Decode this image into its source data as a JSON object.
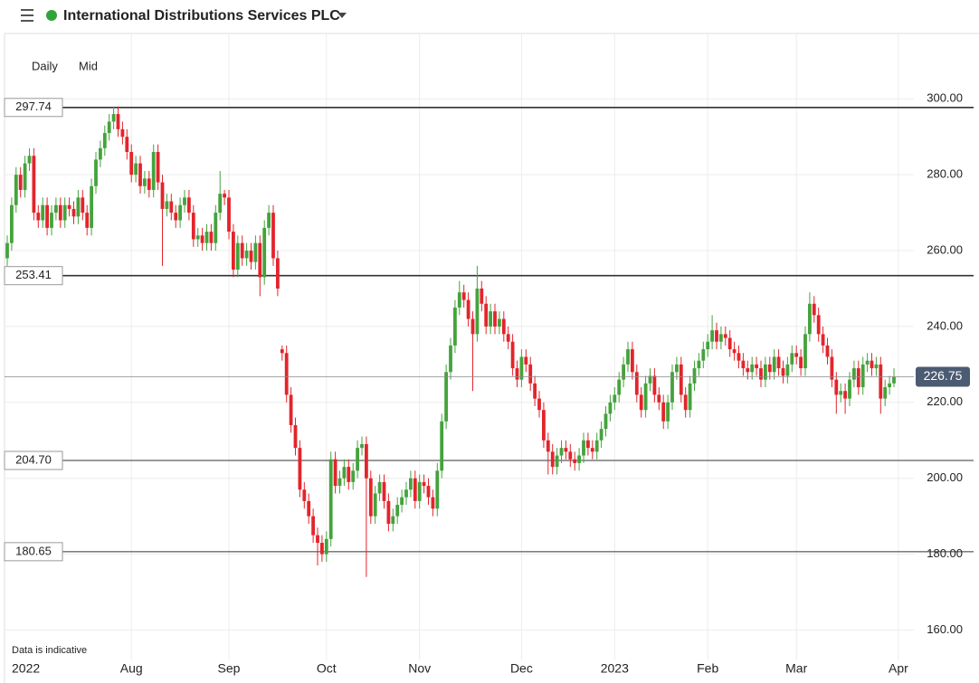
{
  "title": "International Distributions Services PLC",
  "interval": "Daily",
  "price_type": "Mid",
  "note": "Data is indicative",
  "chart_data": {
    "type": "candlestick",
    "up_color": "#44a33c",
    "down_color": "#e3242b",
    "open": [
      258,
      262,
      272,
      280,
      276,
      283,
      285,
      270,
      268,
      272,
      266,
      270,
      272,
      268,
      272,
      271,
      269,
      274,
      270,
      266,
      277,
      284,
      287,
      291,
      294,
      296,
      292,
      290,
      286,
      280,
      283,
      277,
      279,
      276,
      286,
      278,
      271,
      273,
      270,
      268,
      272,
      274,
      270,
      263,
      264,
      262,
      265,
      262,
      270,
      275,
      274,
      265,
      255,
      262,
      258,
      260,
      257,
      262,
      253,
      266,
      270,
      258,
      234,
      233,
      222,
      214,
      208,
      197,
      194,
      190,
      185,
      183,
      180,
      184,
      205,
      198,
      200,
      203,
      199,
      202,
      208,
      209,
      200,
      190,
      196,
      199,
      194,
      188,
      190,
      193,
      195,
      197,
      200,
      194,
      199,
      198,
      195,
      192,
      202,
      215,
      228,
      235,
      245,
      249,
      247,
      242,
      238,
      250,
      246,
      240,
      244,
      240,
      242,
      238,
      236,
      229,
      226,
      232,
      230,
      225,
      221,
      218,
      210,
      207,
      203,
      206,
      208,
      207,
      205,
      204,
      206,
      210,
      208,
      207,
      210,
      213,
      217,
      220,
      222,
      226,
      230,
      234,
      228,
      222,
      218,
      225,
      227,
      222,
      220,
      215,
      220,
      228,
      230,
      222,
      218,
      225,
      229,
      231,
      234,
      236,
      239,
      236,
      238,
      237,
      234,
      233,
      231,
      229,
      228,
      230,
      229,
      226,
      230,
      228,
      232,
      229,
      227,
      230,
      233,
      232,
      229,
      238,
      246,
      243,
      238,
      235,
      232,
      226,
      222,
      223,
      221,
      226,
      229,
      224,
      230,
      231,
      229,
      230,
      221,
      224,
      225
    ],
    "high": [
      264,
      274,
      282,
      282,
      285,
      287,
      287,
      272,
      274,
      274,
      272,
      274,
      274,
      274,
      274,
      273,
      276,
      276,
      272,
      279,
      286,
      289,
      293,
      296,
      298,
      298,
      294,
      292,
      288,
      285,
      285,
      281,
      281,
      288,
      288,
      280,
      275,
      275,
      272,
      274,
      276,
      276,
      272,
      266,
      266,
      267,
      267,
      272,
      281,
      276,
      276,
      267,
      264,
      264,
      262,
      262,
      264,
      264,
      268,
      272,
      272,
      260,
      235,
      235,
      224,
      216,
      210,
      199,
      196,
      192,
      187,
      185,
      186,
      207,
      207,
      202,
      205,
      205,
      204,
      210,
      211,
      211,
      202,
      198,
      201,
      201,
      196,
      192,
      195,
      197,
      199,
      202,
      202,
      201,
      201,
      200,
      197,
      204,
      217,
      230,
      237,
      247,
      252,
      251,
      249,
      244,
      256,
      252,
      248,
      246,
      246,
      244,
      244,
      240,
      238,
      231,
      234,
      234,
      232,
      227,
      223,
      220,
      212,
      209,
      208,
      210,
      210,
      209,
      207,
      208,
      212,
      212,
      210,
      212,
      215,
      219,
      222,
      224,
      228,
      232,
      236,
      236,
      230,
      224,
      227,
      229,
      229,
      224,
      222,
      222,
      230,
      232,
      232,
      224,
      227,
      231,
      233,
      236,
      238,
      243,
      241,
      240,
      240,
      239,
      236,
      235,
      233,
      231,
      232,
      232,
      231,
      232,
      232,
      234,
      234,
      231,
      232,
      235,
      235,
      234,
      240,
      249,
      248,
      245,
      240,
      237,
      234,
      228,
      225,
      225,
      228,
      231,
      231,
      232,
      233,
      233,
      232,
      232,
      226,
      227,
      229
    ],
    "low": [
      256,
      260,
      270,
      274,
      274,
      281,
      268,
      266,
      266,
      264,
      264,
      268,
      266,
      266,
      269,
      267,
      267,
      268,
      264,
      264,
      275,
      282,
      285,
      289,
      292,
      290,
      288,
      284,
      278,
      278,
      275,
      275,
      274,
      274,
      276,
      256,
      269,
      268,
      266,
      266,
      270,
      268,
      261,
      261,
      260,
      260,
      260,
      260,
      268,
      272,
      263,
      253,
      253,
      256,
      256,
      255,
      255,
      248,
      251,
      264,
      256,
      248,
      231,
      220,
      212,
      206,
      195,
      192,
      188,
      183,
      177,
      178,
      178,
      182,
      196,
      196,
      198,
      197,
      197,
      200,
      206,
      174,
      188,
      188,
      194,
      192,
      186,
      186,
      188,
      191,
      193,
      195,
      192,
      192,
      196,
      193,
      190,
      190,
      200,
      213,
      226,
      233,
      243,
      245,
      240,
      223,
      236,
      244,
      238,
      238,
      238,
      238,
      236,
      234,
      227,
      224,
      224,
      228,
      223,
      219,
      216,
      208,
      201,
      201,
      201,
      204,
      205,
      203,
      202,
      202,
      204,
      206,
      205,
      205,
      208,
      211,
      215,
      218,
      220,
      224,
      228,
      226,
      220,
      216,
      216,
      223,
      220,
      218,
      213,
      213,
      218,
      226,
      220,
      216,
      216,
      223,
      227,
      229,
      232,
      234,
      234,
      234,
      235,
      232,
      231,
      229,
      227,
      226,
      226,
      227,
      224,
      224,
      226,
      226,
      227,
      225,
      225,
      228,
      230,
      227,
      227,
      236,
      241,
      236,
      233,
      230,
      224,
      217,
      220,
      217,
      219,
      224,
      222,
      222,
      228,
      227,
      227,
      217,
      219,
      222,
      224
    ],
    "close": [
      262,
      272,
      280,
      276,
      283,
      285,
      270,
      268,
      272,
      266,
      270,
      272,
      268,
      272,
      271,
      269,
      274,
      270,
      266,
      277,
      284,
      287,
      291,
      294,
      296,
      292,
      290,
      286,
      280,
      283,
      277,
      279,
      276,
      286,
      278,
      271,
      273,
      270,
      268,
      272,
      274,
      270,
      263,
      264,
      262,
      265,
      262,
      270,
      275,
      274,
      265,
      255,
      262,
      258,
      260,
      257,
      262,
      253,
      266,
      270,
      258,
      250,
      233,
      222,
      214,
      208,
      197,
      194,
      190,
      185,
      183,
      180,
      184,
      205,
      198,
      200,
      203,
      199,
      202,
      208,
      209,
      200,
      190,
      196,
      199,
      194,
      188,
      190,
      193,
      195,
      197,
      200,
      194,
      199,
      198,
      195,
      192,
      202,
      215,
      228,
      235,
      245,
      249,
      247,
      242,
      238,
      250,
      246,
      240,
      244,
      240,
      242,
      238,
      236,
      229,
      226,
      232,
      230,
      225,
      221,
      218,
      210,
      207,
      203,
      206,
      208,
      207,
      205,
      204,
      206,
      210,
      208,
      207,
      210,
      213,
      217,
      220,
      222,
      226,
      230,
      234,
      228,
      222,
      218,
      225,
      227,
      222,
      220,
      215,
      220,
      228,
      230,
      222,
      218,
      225,
      229,
      231,
      234,
      236,
      239,
      236,
      238,
      237,
      234,
      233,
      231,
      229,
      228,
      230,
      229,
      226,
      230,
      228,
      232,
      229,
      227,
      230,
      233,
      232,
      229,
      238,
      246,
      243,
      238,
      235,
      232,
      226,
      222,
      223,
      221,
      226,
      229,
      224,
      230,
      231,
      229,
      230,
      221,
      224,
      225,
      226.75
    ],
    "ylim": [
      152,
      317
    ],
    "yticks": [
      {
        "value": 160,
        "label": "160.00"
      },
      {
        "value": 180,
        "label": "180.00"
      },
      {
        "value": 200,
        "label": "200.00"
      },
      {
        "value": 220,
        "label": "220.00"
      },
      {
        "value": 240,
        "label": "240.00"
      },
      {
        "value": 260,
        "label": "260.00"
      },
      {
        "value": 280,
        "label": "280.00"
      },
      {
        "value": 300,
        "label": "300.00"
      }
    ],
    "xticks": [
      {
        "value": 4,
        "label": "2022"
      },
      {
        "value": 28,
        "label": "Aug"
      },
      {
        "value": 50,
        "label": "Sep"
      },
      {
        "value": 72,
        "label": "Oct"
      },
      {
        "value": 93,
        "label": "Nov"
      },
      {
        "value": 116,
        "label": "Dec"
      },
      {
        "value": 137,
        "label": "2023"
      },
      {
        "value": 158,
        "label": "Feb"
      },
      {
        "value": 178,
        "label": "Mar"
      },
      {
        "value": 201,
        "label": "Apr"
      }
    ],
    "levels": [
      {
        "value": 297.74,
        "label": "297.74"
      },
      {
        "value": 253.41,
        "label": "253.41"
      },
      {
        "value": 204.7,
        "label": "204.70"
      },
      {
        "value": 180.65,
        "label": "180.65"
      }
    ],
    "last_price": 226.75,
    "grid": true
  }
}
